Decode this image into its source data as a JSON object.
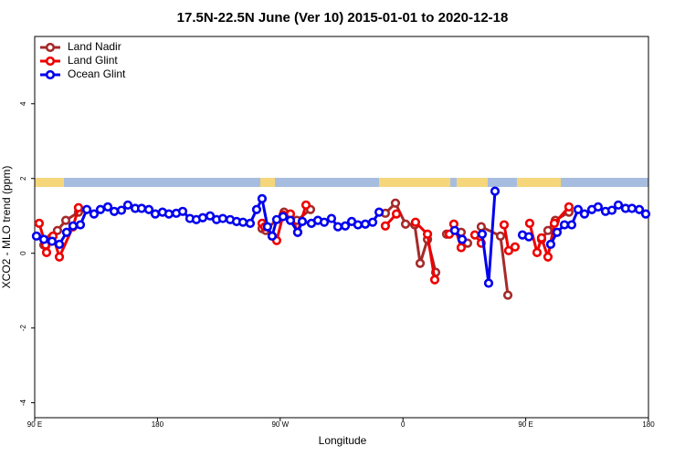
{
  "chart_data": {
    "type": "line",
    "title": "17.5N-22.5N June (Ver 10)   2015-01-01 to 2020-12-18",
    "x_label": "Longitude",
    "y_label": "XCO2 - MLO trend (ppm)",
    "xlim": [
      90,
      540
    ],
    "xticks": [
      {
        "value": 90,
        "label": "90 E"
      },
      {
        "value": 180,
        "label": "180"
      },
      {
        "value": 270,
        "label": "90 W"
      },
      {
        "value": 360,
        "label": "0"
      },
      {
        "value": 450,
        "label": "90 E"
      },
      {
        "value": 540,
        "label": "180"
      }
    ],
    "ylim": [
      -4.4,
      5.8
    ],
    "yticks": [
      -4,
      -2,
      0,
      2,
      4
    ],
    "legend": "top-left",
    "series": [
      {
        "name": "Land Nadir",
        "color": "#a52a2a",
        "x": [
          96.7,
          102.1,
          106.7,
          112.8,
          122.1,
          null,
          256.7,
          259.4,
          272.8,
          282.2,
          292.2,
          null,
          347.1,
          354.5,
          361.9,
          368.6,
          372.6,
          378.0,
          384.0,
          null,
          392.0,
          402.7,
          407.4,
          null,
          417.4,
          431.5,
          436.9,
          null,
          461.6,
          466.3,
          471.7,
          481.7
        ],
        "values": [
          0.22,
          0.41,
          0.61,
          0.88,
          1.1,
          null,
          0.66,
          0.61,
          1.1,
          0.88,
          1.17,
          null,
          1.07,
          1.34,
          0.78,
          0.76,
          -0.27,
          0.37,
          -0.51,
          null,
          0.51,
          0.56,
          0.27,
          null,
          0.71,
          0.46,
          -1.12,
          null,
          0.37,
          0.61,
          0.88,
          1.1
        ]
      },
      {
        "name": "Land Glint",
        "color": "#ee0000",
        "x": [
          93.3,
          98.0,
          98.7,
          103.4,
          108.1,
          118.1,
          122.1,
          null,
          256.7,
          258.7,
          264.1,
          267.4,
          272.1,
          277.5,
          282.8,
          288.9,
          null,
          347.1,
          355.2,
          null,
          369.2,
          378.0,
          383.3,
          null,
          394.0,
          397.3,
          402.7,
          null,
          412.7,
          417.4,
          null,
          434.2,
          437.5,
          442.2,
          null,
          452.9,
          458.3,
          461.6,
          466.3,
          471.0,
          481.7
        ],
        "values": [
          0.8,
          0.22,
          0.02,
          0.46,
          -0.1,
          0.71,
          1.22,
          null,
          0.8,
          0.71,
          0.46,
          0.34,
          1.02,
          1.05,
          0.56,
          1.29,
          null,
          0.73,
          1.05,
          null,
          0.83,
          0.51,
          -0.71,
          null,
          0.51,
          0.78,
          0.15,
          null,
          0.49,
          0.27,
          null,
          0.76,
          0.07,
          0.17,
          null,
          0.8,
          0.02,
          0.41,
          -0.1,
          0.8,
          1.24
        ]
      },
      {
        "name": "Ocean Glint",
        "color": "#0000ee",
        "x": [
          91.3,
          96.7,
          102.7,
          108.1,
          113.4,
          118.1,
          123.5,
          128.2,
          133.5,
          138.2,
          143.6,
          148.3,
          153.6,
          158.3,
          163.7,
          168.4,
          173.7,
          178.4,
          183.7,
          188.4,
          193.8,
          198.5,
          203.8,
          208.5,
          213.2,
          218.6,
          223.3,
          227.9,
          233.3,
          238.0,
          242.7,
          248.0,
          252.7,
          256.7,
          260.7,
          264.1,
          267.4,
          272.1,
          277.5,
          282.8,
          286.2,
          292.9,
          297.6,
          302.3,
          307.6,
          312.3,
          317.7,
          322.4,
          327.0,
          332.4,
          337.8,
          342.5,
          null,
          398.0,
          403.4,
          null,
          418.1,
          422.8,
          427.5,
          null,
          447.6,
          452.3,
          null,
          468.3,
          473.0,
          478.4,
          483.7,
          488.4,
          493.1,
          498.5,
          503.1,
          508.5,
          513.2,
          517.9,
          523.2,
          527.9,
          533.3,
          538.0
        ],
        "values": [
          0.46,
          0.37,
          0.32,
          0.24,
          0.56,
          0.73,
          0.76,
          1.17,
          1.05,
          1.17,
          1.24,
          1.12,
          1.15,
          1.29,
          1.2,
          1.2,
          1.17,
          1.05,
          1.1,
          1.05,
          1.07,
          1.12,
          0.93,
          0.9,
          0.95,
          1.0,
          0.9,
          0.93,
          0.9,
          0.85,
          0.83,
          0.8,
          1.17,
          1.46,
          0.71,
          0.46,
          0.9,
          0.98,
          0.88,
          0.56,
          0.85,
          0.8,
          0.88,
          0.83,
          0.93,
          0.71,
          0.73,
          0.85,
          0.76,
          0.78,
          0.83,
          1.1,
          null,
          0.61,
          0.37,
          null,
          0.51,
          -0.8,
          1.66,
          null,
          0.49,
          0.44,
          null,
          0.24,
          0.56,
          0.76,
          0.76,
          1.17,
          1.05,
          1.17,
          1.24,
          1.12,
          1.15,
          1.29,
          1.2,
          1.2,
          1.17,
          1.05
        ]
      }
    ]
  }
}
